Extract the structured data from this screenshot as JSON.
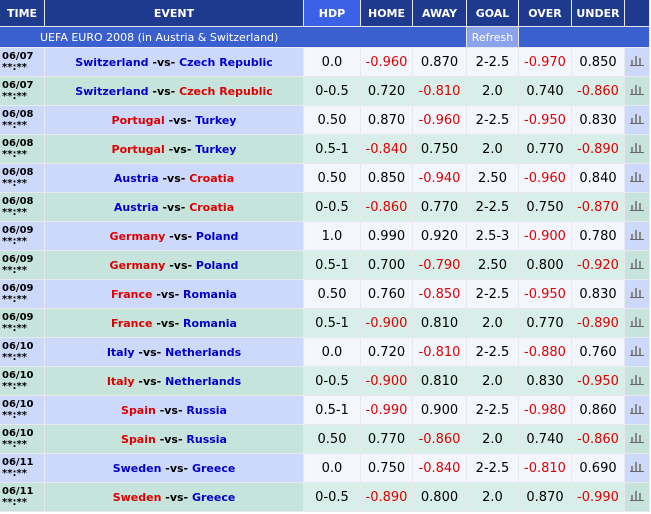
{
  "table": {
    "headers": [
      "TIME",
      "EVENT",
      "HDP",
      "HOME",
      "AWAY",
      "GOAL",
      "OVER",
      "UNDER"
    ],
    "league": "UEFA EURO 2008 (in Austria & Switzerland)",
    "refresh": "Refresh",
    "vs_label": "-vs-",
    "rows": [
      {
        "date": "06/07",
        "time": "**:**",
        "home": "Switzerland",
        "away": "Czech Republic",
        "hdp": "0.0",
        "home_odds": "-0.960",
        "away_odds": "0.870",
        "goal": "2-2.5",
        "over": "-0.970",
        "under": "0.850",
        "home_color": "#0000cc",
        "away_color": "#0000cc"
      },
      {
        "date": "06/07",
        "time": "**:**",
        "home": "Switzerland",
        "away": "Czech Republic",
        "hdp": "0-0.5",
        "home_odds": "0.720",
        "away_odds": "-0.810",
        "goal": "2.0",
        "over": "0.740",
        "under": "-0.860",
        "home_color": "#0000cc",
        "away_color": "#dd0000"
      },
      {
        "date": "06/08",
        "time": "**:**",
        "home": "Portugal",
        "away": "Turkey",
        "hdp": "0.50",
        "home_odds": "0.870",
        "away_odds": "-0.960",
        "goal": "2-2.5",
        "over": "-0.950",
        "under": "0.830",
        "home_color": "#dd0000",
        "away_color": "#0000cc"
      },
      {
        "date": "06/08",
        "time": "**:**",
        "home": "Portugal",
        "away": "Turkey",
        "hdp": "0.5-1",
        "home_odds": "-0.840",
        "away_odds": "0.750",
        "goal": "2.0",
        "over": "0.770",
        "under": "-0.890",
        "home_color": "#dd0000",
        "away_color": "#0000cc"
      },
      {
        "date": "06/08",
        "time": "**:**",
        "home": "Austria",
        "away": "Croatia",
        "hdp": "0.50",
        "home_odds": "0.850",
        "away_odds": "-0.940",
        "goal": "2.50",
        "over": "-0.960",
        "under": "0.840",
        "home_color": "#0000cc",
        "away_color": "#dd0000"
      },
      {
        "date": "06/08",
        "time": "**:**",
        "home": "Austria",
        "away": "Croatia",
        "hdp": "0-0.5",
        "home_odds": "-0.860",
        "away_odds": "0.770",
        "goal": "2-2.5",
        "over": "0.750",
        "under": "-0.870",
        "home_color": "#0000cc",
        "away_color": "#dd0000"
      },
      {
        "date": "06/09",
        "time": "**:**",
        "home": "Germany",
        "away": "Poland",
        "hdp": "1.0",
        "home_odds": "0.990",
        "away_odds": "0.920",
        "goal": "2.5-3",
        "over": "-0.900",
        "under": "0.780",
        "home_color": "#dd0000",
        "away_color": "#0000cc"
      },
      {
        "date": "06/09",
        "time": "**:**",
        "home": "Germany",
        "away": "Poland",
        "hdp": "0.5-1",
        "home_odds": "0.700",
        "away_odds": "-0.790",
        "goal": "2.50",
        "over": "0.800",
        "under": "-0.920",
        "home_color": "#dd0000",
        "away_color": "#0000cc"
      },
      {
        "date": "06/09",
        "time": "**:**",
        "home": "France",
        "away": "Romania",
        "hdp": "0.50",
        "home_odds": "0.760",
        "away_odds": "-0.850",
        "goal": "2-2.5",
        "over": "-0.950",
        "under": "0.830",
        "home_color": "#dd0000",
        "away_color": "#0000cc"
      },
      {
        "date": "06/09",
        "time": "**:**",
        "home": "France",
        "away": "Romania",
        "hdp": "0.5-1",
        "home_odds": "-0.900",
        "away_odds": "0.810",
        "goal": "2.0",
        "over": "0.770",
        "under": "-0.890",
        "home_color": "#dd0000",
        "away_color": "#0000cc"
      },
      {
        "date": "06/10",
        "time": "**:**",
        "home": "Italy",
        "away": "Netherlands",
        "hdp": "0.0",
        "home_odds": "0.720",
        "away_odds": "-0.810",
        "goal": "2-2.5",
        "over": "-0.880",
        "under": "0.760",
        "home_color": "#0000cc",
        "away_color": "#0000cc"
      },
      {
        "date": "06/10",
        "time": "**:**",
        "home": "Italy",
        "away": "Netherlands",
        "hdp": "0-0.5",
        "home_odds": "-0.900",
        "away_odds": "0.810",
        "goal": "2.0",
        "over": "0.830",
        "under": "-0.950",
        "home_color": "#dd0000",
        "away_color": "#0000cc"
      },
      {
        "date": "06/10",
        "time": "**:**",
        "home": "Spain",
        "away": "Russia",
        "hdp": "0.5-1",
        "home_odds": "-0.990",
        "away_odds": "0.900",
        "goal": "2-2.5",
        "over": "-0.980",
        "under": "0.860",
        "home_color": "#dd0000",
        "away_color": "#0000cc"
      },
      {
        "date": "06/10",
        "time": "**:**",
        "home": "Spain",
        "away": "Russia",
        "hdp": "0.50",
        "home_odds": "0.770",
        "away_odds": "-0.860",
        "goal": "2.0",
        "over": "0.740",
        "under": "-0.860",
        "home_color": "#dd0000",
        "away_color": "#0000cc"
      },
      {
        "date": "06/11",
        "time": "**:**",
        "home": "Sweden",
        "away": "Greece",
        "hdp": "0.0",
        "home_odds": "0.750",
        "away_odds": "-0.840",
        "goal": "2-2.5",
        "over": "-0.810",
        "under": "0.690",
        "home_color": "#0000cc",
        "away_color": "#0000cc"
      },
      {
        "date": "06/11",
        "time": "**:**",
        "home": "Sweden",
        "away": "Greece",
        "hdp": "0-0.5",
        "home_odds": "-0.890",
        "away_odds": "0.800",
        "goal": "2.0",
        "over": "0.870",
        "under": "-0.990",
        "home_color": "#dd0000",
        "away_color": "#0000cc"
      }
    ]
  }
}
